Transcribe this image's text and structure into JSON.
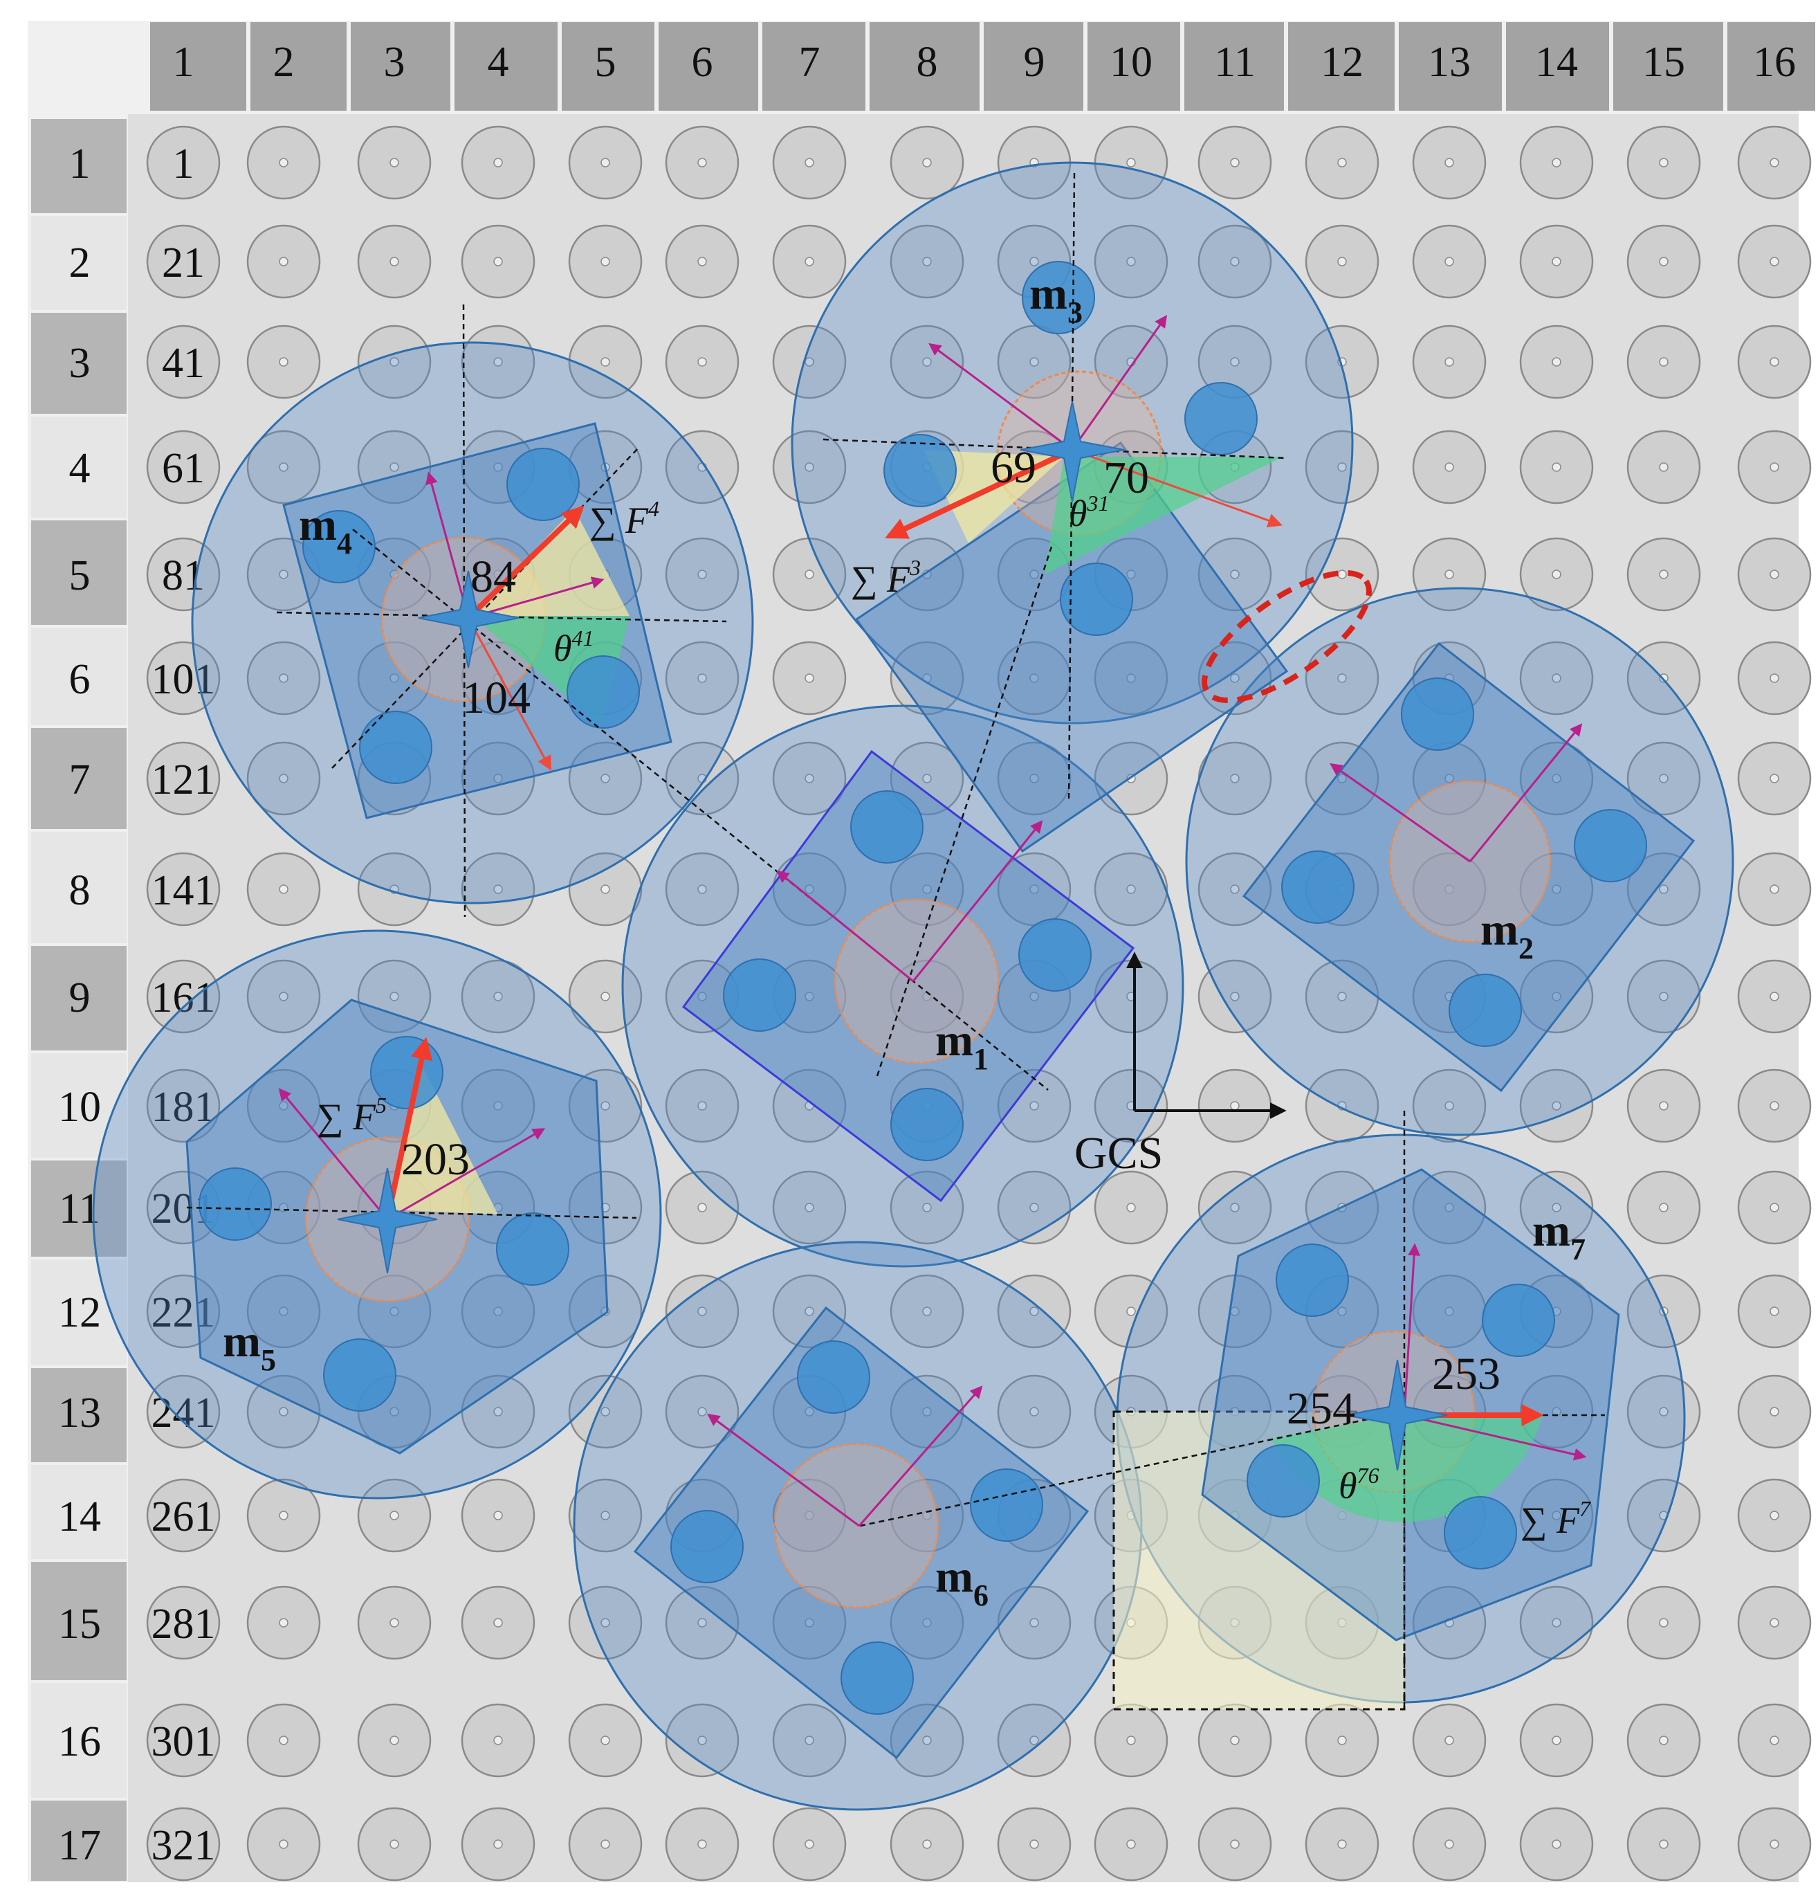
{
  "grid": {
    "column_headers": [
      "1",
      "2",
      "3",
      "4",
      "5",
      "6",
      "7",
      "8",
      "9",
      "10",
      "11",
      "12",
      "13",
      "14",
      "15",
      "16"
    ],
    "row_headers": [
      "1",
      "2",
      "3",
      "4",
      "5",
      "6",
      "7",
      "8",
      "9",
      "10",
      "11",
      "12",
      "13",
      "14",
      "15",
      "16",
      "17"
    ],
    "first_column_ids": [
      "1",
      "21",
      "41",
      "61",
      "81",
      "101",
      "121",
      "141",
      "161",
      "181",
      "201",
      "221",
      "241",
      "261",
      "281",
      "301",
      "321"
    ]
  },
  "modules": [
    {
      "label": "m",
      "sub": "1"
    },
    {
      "label": "m",
      "sub": "2"
    },
    {
      "label": "m",
      "sub": "3"
    },
    {
      "label": "m",
      "sub": "4"
    },
    {
      "label": "m",
      "sub": "5"
    },
    {
      "label": "m",
      "sub": "6"
    },
    {
      "label": "m",
      "sub": "7"
    }
  ],
  "cell_labels": [
    "84",
    "104",
    "69",
    "70",
    "203",
    "253",
    "254"
  ],
  "forces": [
    {
      "sym": "∑",
      "F": "F",
      "sup": "4"
    },
    {
      "sym": "∑",
      "F": "F",
      "sup": "3"
    },
    {
      "sym": "∑",
      "F": "F",
      "sup": "5"
    },
    {
      "sym": "∑",
      "F": "F",
      "sup": "7"
    }
  ],
  "angles": [
    {
      "theta": "θ",
      "sup": "41"
    },
    {
      "theta": "θ",
      "sup": "31"
    },
    {
      "theta": "θ",
      "sup": "76"
    }
  ],
  "gcs_label": "GCS",
  "colors": {
    "module_fill": "#4d86c6",
    "grid_bg": "#dedede",
    "force_arrow": "#f23b2a",
    "axis_arrow": "#b8208c",
    "highlight": "#d9231b"
  }
}
